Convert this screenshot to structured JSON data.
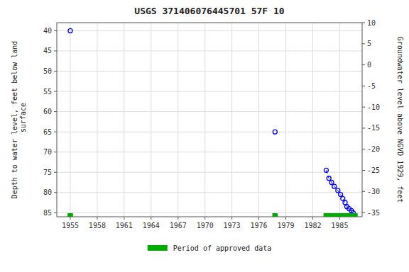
{
  "chart_data": {
    "type": "scatter",
    "title": "USGS 371406076445701 57F 10",
    "y_label": "Depth to water level, feet below land\n surface",
    "y2_label": "Groundwater level above NGVD 1929, feet",
    "xlim": [
      1953.5,
      1987.5
    ],
    "ylim": [
      86,
      38
    ],
    "y2lim": [
      -36,
      10
    ],
    "xticks": [
      1955,
      1958,
      1961,
      1964,
      1967,
      1970,
      1973,
      1976,
      1979,
      1982,
      1985
    ],
    "yticks": [
      40,
      45,
      50,
      55,
      60,
      65,
      70,
      75,
      80,
      85
    ],
    "y2ticks": [
      10,
      5,
      0,
      -5,
      -10,
      -15,
      -20,
      -25,
      -30,
      -35
    ],
    "grid": true,
    "series": [
      {
        "x": [
          1955.0,
          1977.8
        ],
        "values": [
          40.0,
          65.0
        ],
        "color": "#0000ff",
        "marker": "circle",
        "line_style": "none"
      },
      {
        "x": [
          1983.5,
          1983.8,
          1984.1,
          1984.4,
          1984.8,
          1985.1,
          1985.35,
          1985.6,
          1985.8,
          1986.05,
          1986.3,
          1986.5
        ],
        "values": [
          74.5,
          76.5,
          77.5,
          78.5,
          79.5,
          80.5,
          81.5,
          82.5,
          83.5,
          84.0,
          84.5,
          85.0
        ],
        "color": "#0000ff",
        "marker": "circle",
        "line_style": "dashed"
      }
    ],
    "spans": {
      "name": "Period of approved data",
      "color": "#00aa00",
      "x_start": [
        1954.7,
        1977.5,
        1983.2
      ],
      "x_end": [
        1955.3,
        1978.1,
        1987.0
      ]
    }
  }
}
